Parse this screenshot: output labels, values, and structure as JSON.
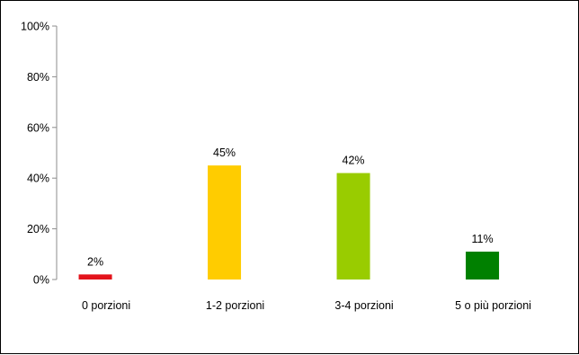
{
  "chart_data": {
    "type": "bar",
    "categories": [
      "0 porzioni",
      "1-2 porzioni",
      "3-4 porzioni",
      "5 o più porzioni"
    ],
    "values": [
      2,
      45,
      42,
      11
    ],
    "data_labels": [
      "2%",
      "45%",
      "42%",
      "11%"
    ],
    "colors": [
      "#e3131b",
      "#ffcc00",
      "#99cc00",
      "#008000"
    ],
    "yticks": [
      "0%",
      "20%",
      "40%",
      "60%",
      "80%",
      "100%"
    ],
    "ylim": [
      0,
      100
    ],
    "grid": false,
    "legend": "none"
  }
}
